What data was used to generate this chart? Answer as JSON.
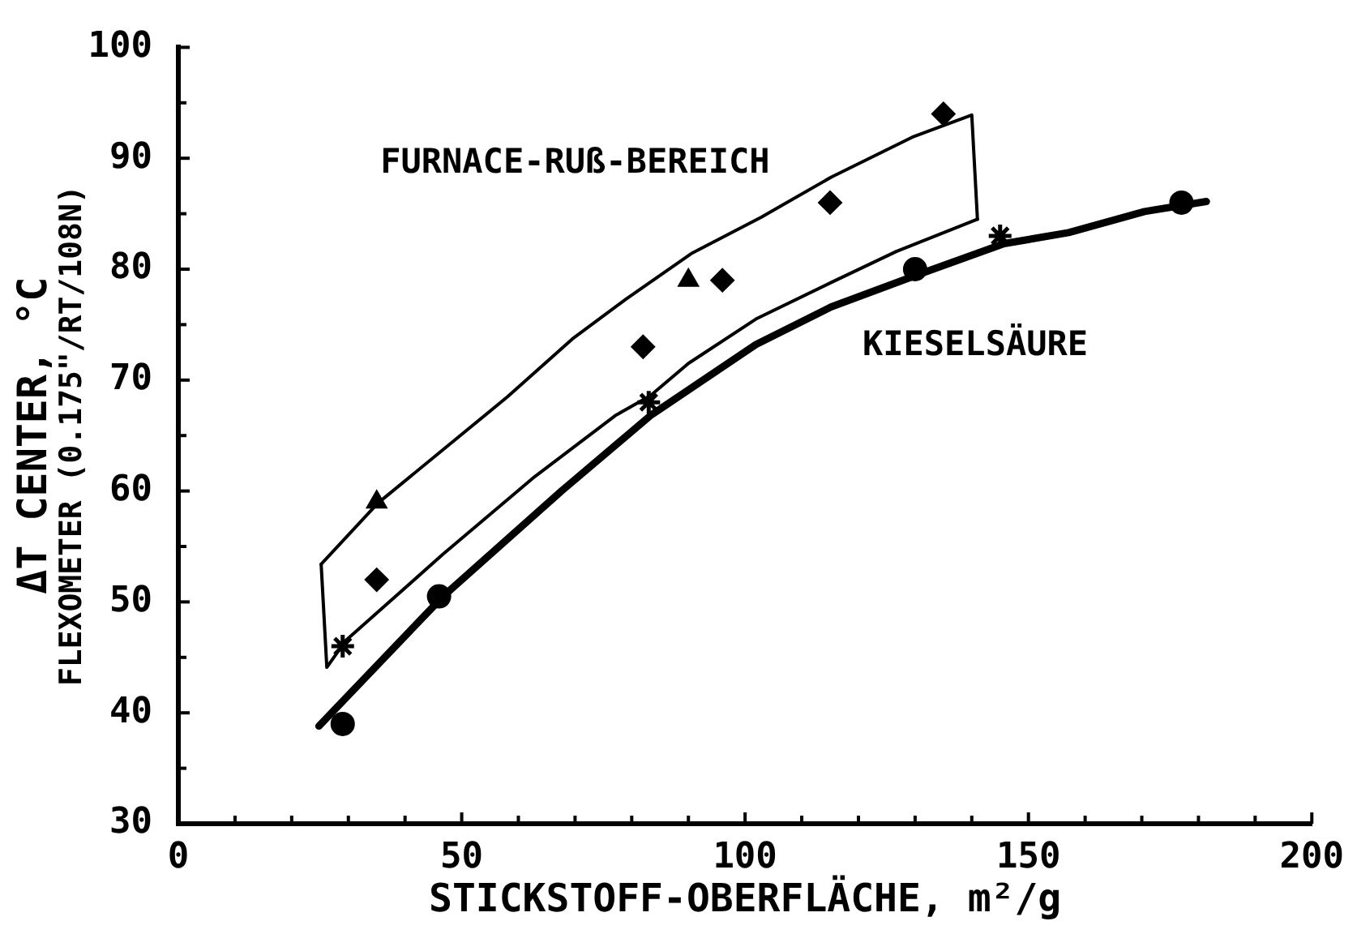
{
  "chart_data": {
    "type": "scatter",
    "xlabel": "STICKSTOFF-OBERFLÄCHE, m²/g",
    "ylabel": "ΔT CENTER, °C\nFLEXOMETER (0.175\"/RT/108N)",
    "xlim": [
      0,
      200
    ],
    "ylim": [
      30,
      100
    ],
    "xticks": [
      0,
      {
        "value": 10,
        "label": null
      },
      {
        "value": 20,
        "label": null
      },
      {
        "value": 30,
        "label": null
      },
      {
        "value": 40,
        "label": null
      },
      50,
      {
        "value": 60,
        "label": null
      },
      {
        "value": 70,
        "label": null
      },
      {
        "value": 80,
        "label": null
      },
      {
        "value": 90,
        "label": null
      },
      100,
      {
        "value": 110,
        "label": null
      },
      {
        "value": 120,
        "label": null
      },
      {
        "value": 130,
        "label": null
      },
      {
        "value": 140,
        "label": null
      },
      150,
      {
        "value": 160,
        "label": null
      },
      {
        "value": 170,
        "label": null
      },
      {
        "value": 180,
        "label": null
      },
      {
        "value": 190,
        "label": null
      },
      200
    ],
    "yticks": [
      30,
      {
        "value": 35,
        "label": null
      },
      40,
      {
        "value": 45,
        "label": null
      },
      50,
      {
        "value": 55,
        "label": null
      },
      60,
      {
        "value": 65,
        "label": null
      },
      70,
      {
        "value": 75,
        "label": null
      },
      80,
      {
        "value": 85,
        "label": null
      },
      90,
      {
        "value": 95,
        "label": null
      },
      100
    ],
    "annotations": [
      "FURNACE-RUß-BEREICH",
      "KIESELSÄURE"
    ],
    "series": [
      {
        "type": "line",
        "color": "#000000",
        "marker": "none",
        "line_style": "solid",
        "x": [
          25.2,
          35.2,
          47.6,
          58.1,
          69.5,
          79,
          90.5,
          102.9,
          115.2,
          129.5,
          140,
          141
        ],
        "values": [
          53.4,
          58.9,
          64.1,
          68.5,
          73.7,
          77.3,
          81.4,
          84.7,
          88.3,
          91.9,
          93.9,
          84.5
        ]
      },
      {
        "type": "line",
        "color": "#000000",
        "marker": "none",
        "line_style": "solid",
        "x": [
          25.2,
          26.2,
          29.5,
          46.7,
          62.9,
          77.1,
          83.3,
          90,
          101.9,
          115.2,
          126.7,
          141
        ],
        "values": [
          53.4,
          44.1,
          46.5,
          54.3,
          61.3,
          66.8,
          68.6,
          71.5,
          75.5,
          78.8,
          81.6,
          84.5
        ]
      },
      {
        "type": "line",
        "color": "#000000",
        "marker": "none",
        "line_style": "solid",
        "x": [
          24.8,
          46.7,
          67.6,
          83.3,
          101.9,
          115.2,
          130.5,
          145.7,
          157.1,
          170.5,
          181.4
        ],
        "values": [
          38.8,
          50.5,
          60,
          66.8,
          73.2,
          76.6,
          79.5,
          82.3,
          83.3,
          85.2,
          86.1
        ]
      },
      {
        "color": "#000000",
        "marker": "triangle",
        "x": [
          35,
          90
        ],
        "values": [
          59,
          79
        ]
      },
      {
        "color": "#000000",
        "marker": "diamond",
        "x": [
          35,
          82,
          96,
          115,
          135
        ],
        "values": [
          52,
          73,
          79,
          86,
          94
        ]
      },
      {
        "color": "#000000",
        "marker": "circle",
        "x": [
          29,
          46,
          130,
          177
        ],
        "values": [
          39,
          50.5,
          80,
          86
        ]
      },
      {
        "color": "#000000",
        "marker": "cross",
        "x": [
          29,
          83,
          145
        ],
        "values": [
          46,
          68,
          83
        ]
      }
    ]
  }
}
